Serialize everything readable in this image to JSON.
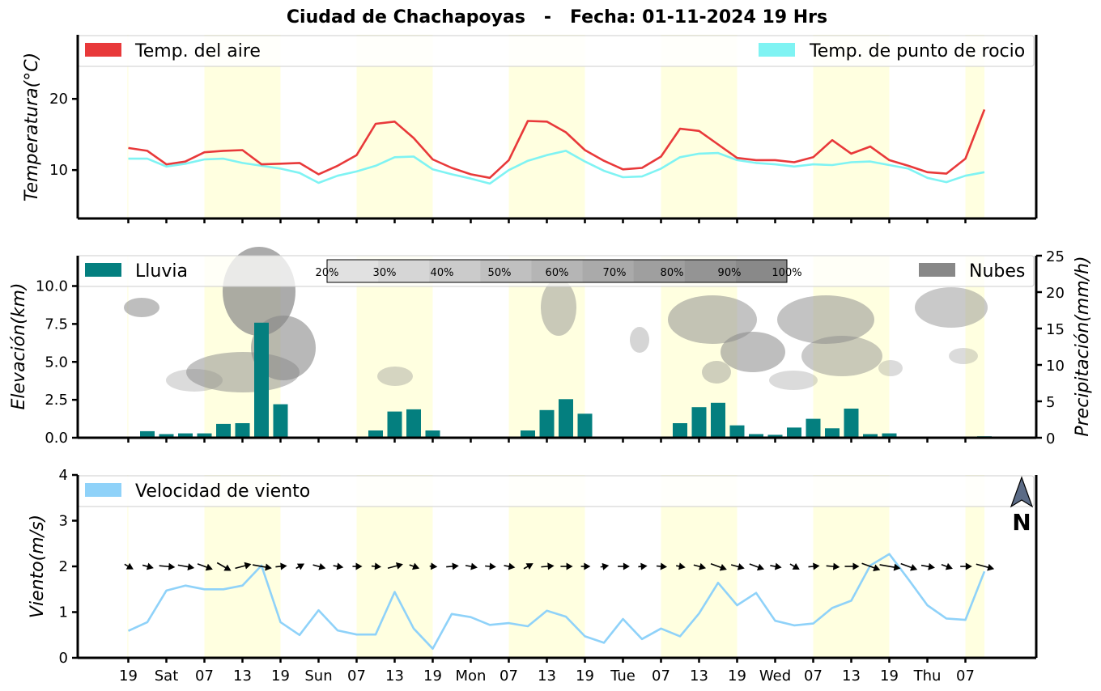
{
  "title": "Ciudad de Chachapoyas   -   Fecha: 01-11-2024 19 Hrs",
  "colors": {
    "temp_air": "#e8393a",
    "temp_dew": "#7ff3f3",
    "rain": "#047f7f",
    "clouds": "#888888",
    "wind": "#8fd2f9",
    "daylight": "#ffffe0"
  },
  "x_tick_labels": [
    "19",
    "Sat",
    "07",
    "13",
    "19",
    "Sun",
    "07",
    "13",
    "19",
    "Mon",
    "07",
    "13",
    "19",
    "Tue",
    "07",
    "13",
    "19",
    "Wed",
    "07",
    "13",
    "19",
    "Thu",
    "07"
  ],
  "daylight_bands": [
    [
      -0.05,
      0
    ],
    [
      4,
      8
    ],
    [
      12,
      16
    ],
    [
      20,
      24
    ],
    [
      28,
      32
    ],
    [
      36,
      40
    ],
    [
      44,
      45
    ]
  ],
  "north_arrow_label": "N",
  "chart_data": [
    {
      "type": "line",
      "ylabel": "Temperatura(°C)",
      "ylim": [
        3.2,
        29
      ],
      "yticks": [
        10,
        20
      ],
      "legend": [
        "Temp. del aire",
        "Temp. de punto de rocio"
      ],
      "series": [
        {
          "name": "Temp. del aire",
          "values": [
            13.1,
            12.7,
            10.8,
            11.2,
            12.5,
            12.7,
            12.8,
            10.8,
            10.9,
            11.0,
            9.4,
            10.6,
            12.1,
            16.5,
            16.8,
            14.5,
            11.5,
            10.3,
            9.4,
            8.9,
            11.4,
            16.9,
            16.8,
            15.3,
            12.8,
            11.3,
            10.1,
            10.3,
            11.9,
            15.8,
            15.5,
            13.6,
            11.7,
            11.4,
            11.4,
            11.1,
            11.8,
            14.2,
            12.3,
            13.3,
            11.4,
            10.6,
            9.7,
            9.5,
            11.6,
            18.5
          ]
        },
        {
          "name": "Temp. de punto de rocio",
          "values": [
            11.6,
            11.6,
            10.5,
            10.9,
            11.5,
            11.6,
            11.0,
            10.6,
            10.2,
            9.6,
            8.2,
            9.2,
            9.8,
            10.6,
            11.8,
            11.9,
            10.1,
            9.4,
            8.8,
            8.1,
            10.0,
            11.3,
            12.1,
            12.7,
            11.2,
            9.9,
            9.0,
            9.1,
            10.2,
            11.8,
            12.3,
            12.4,
            11.4,
            11.0,
            10.8,
            10.5,
            10.8,
            10.7,
            11.1,
            11.2,
            10.7,
            10.2,
            8.9,
            8.3,
            9.2,
            9.7
          ]
        }
      ]
    },
    {
      "type": "bar",
      "ylabel": "Elevación(km)",
      "y2label": "Precipitación(mm/h)",
      "ylim": [
        0,
        12
      ],
      "y2lim": [
        0,
        25
      ],
      "yticks": [
        0.0,
        2.5,
        5.0,
        7.5,
        10.0
      ],
      "ytick_labels": [
        "0.0",
        "2.5",
        "5.0",
        "7.5",
        "10.0"
      ],
      "y2ticks": [
        0,
        5,
        10,
        15,
        20,
        25
      ],
      "legend": [
        "Lluvia",
        "Nubes"
      ],
      "colorbar_labels": [
        "20%",
        "30%",
        "40%",
        "50%",
        "60%",
        "70%",
        "80%",
        "90%",
        "100%"
      ],
      "series": [
        {
          "name": "Lluvia",
          "values": [
            0.1,
            0.9,
            0.5,
            0.6,
            0.6,
            1.9,
            2.0,
            15.8,
            4.6,
            0,
            0,
            0,
            0,
            1.0,
            3.6,
            3.9,
            1.0,
            0,
            0,
            0,
            0,
            1.0,
            3.8,
            5.3,
            3.3,
            0.1,
            0,
            0,
            0,
            2.0,
            4.2,
            4.8,
            1.7,
            0.5,
            0.4,
            1.4,
            2.6,
            1.3,
            4.0,
            0.5,
            0.6,
            0,
            0,
            0,
            0,
            0.2
          ]
        }
      ]
    },
    {
      "type": "line",
      "ylabel": "Viento(m/s)",
      "ylim": [
        0,
        4
      ],
      "yticks": [
        0,
        1,
        2,
        3,
        4
      ],
      "legend": [
        "Velocidad de viento"
      ],
      "series": [
        {
          "name": "Velocidad de viento",
          "values": [
            0.59,
            0.78,
            1.47,
            1.58,
            1.5,
            1.5,
            1.58,
            2.02,
            0.78,
            0.5,
            1.04,
            0.6,
            0.51,
            0.51,
            1.44,
            0.64,
            0.2,
            0.96,
            0.89,
            0.72,
            0.76,
            0.69,
            1.03,
            0.9,
            0.47,
            0.33,
            0.85,
            0.41,
            0.64,
            0.47,
            0.97,
            1.64,
            1.15,
            1.42,
            0.81,
            0.71,
            0.75,
            1.09,
            1.25,
            2.02,
            2.27,
            1.72,
            1.15,
            0.86,
            0.83,
            1.89
          ]
        }
      ],
      "wind_direction_deg": [
        120,
        105,
        95,
        100,
        110,
        120,
        75,
        100,
        85,
        60,
        105,
        100,
        90,
        95,
        75,
        110,
        95,
        85,
        100,
        95,
        100,
        60,
        85,
        90,
        90,
        80,
        90,
        85,
        95,
        100,
        105,
        110,
        105,
        110,
        100,
        120,
        85,
        95,
        90,
        110,
        100,
        110,
        100,
        110,
        90,
        105
      ]
    }
  ]
}
